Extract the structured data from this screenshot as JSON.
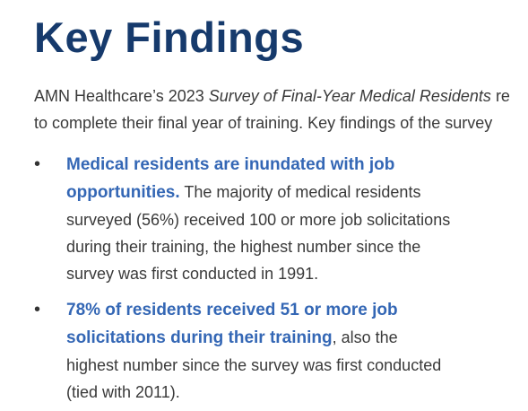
{
  "header": {
    "title": "Key Findings"
  },
  "intro": {
    "line1": {
      "before": "AMN Healthcare’s 2023",
      "italic": "Survey of Final-Year Medical Residents",
      "after": "re"
    },
    "line2": "to complete their final year of training. Key findings of the survey"
  },
  "bullets": [
    {
      "lead": [
        "Medical residents are inundated with job",
        "opportunities."
      ],
      "body": [
        "The majority of medical residents",
        "surveyed (56%) received 100 or more job solicitations",
        "during their training, the highest number since the",
        "survey was first conducted in 1991."
      ]
    },
    {
      "lead": [
        "78% of residents received 51 or more job",
        "solicitations during their training"
      ],
      "body": [
        ", also the",
        "highest number since the survey was first conducted",
        "(tied with 2011)."
      ]
    }
  ]
}
